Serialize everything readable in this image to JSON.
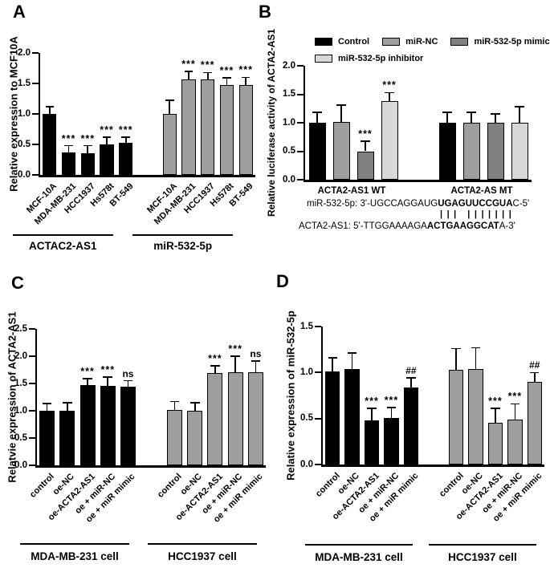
{
  "figure": {
    "background": "#ffffff"
  },
  "colors": {
    "black": "#000000",
    "gray": "#9e9e9e",
    "dark_gray": "#818181",
    "light_gray": "#d8d8d8"
  },
  "chart_data": [
    {
      "id": "A",
      "type": "bar",
      "panel_letter": "A",
      "ylabel": "Relative expression to MCF10A",
      "ylim": [
        0,
        2.0
      ],
      "yticks": [
        0.0,
        0.5,
        1.0,
        1.5,
        2.0
      ],
      "grid": false,
      "categories": [
        "MCF-10A",
        "MDA-MB-231",
        "HCC1937",
        "Hs578t",
        "BT-549"
      ],
      "groups": [
        {
          "label": "ACTAC2-AS1",
          "color": "#000000",
          "values": [
            1.0,
            0.37,
            0.36,
            0.5,
            0.53
          ],
          "errors": [
            0.12,
            0.11,
            0.12,
            0.12,
            0.09
          ],
          "sig": [
            "",
            "***",
            "***",
            "***",
            "***"
          ]
        },
        {
          "label": "miR-532-5p",
          "color": "#9e9e9e",
          "values": [
            1.0,
            1.57,
            1.57,
            1.47,
            1.47
          ],
          "errors": [
            0.22,
            0.13,
            0.11,
            0.12,
            0.13
          ],
          "sig": [
            "",
            "***",
            "***",
            "***",
            "***"
          ]
        }
      ]
    },
    {
      "id": "B",
      "type": "bar",
      "panel_letter": "B",
      "ylabel": "Relative luciferase activity of ACTA2-AS1",
      "ylim": [
        0,
        2.0
      ],
      "yticks": [
        0.0,
        0.5,
        1.0,
        1.5,
        2.0
      ],
      "grid": false,
      "legend": [
        {
          "label": "Control",
          "color": "#000000"
        },
        {
          "label": "miR-NC",
          "color": "#9e9e9e"
        },
        {
          "label": "miR-532-5p mimic",
          "color": "#818181"
        },
        {
          "label": "miR-532-5p inhibitor",
          "color": "#d8d8d8"
        }
      ],
      "groups": [
        {
          "label": "ACTA2-AS1 WT",
          "values": [
            1.0,
            1.01,
            0.5,
            1.38
          ],
          "errors": [
            0.18,
            0.3,
            0.18,
            0.15
          ],
          "sig": [
            "",
            "",
            "***",
            "***"
          ]
        },
        {
          "label": "ACTA2-AS MT",
          "values": [
            1.0,
            1.0,
            1.0,
            1.0
          ],
          "errors": [
            0.18,
            0.18,
            0.16,
            0.28
          ],
          "sig": [
            "",
            "",
            "",
            ""
          ]
        }
      ],
      "annotation": {
        "line1": [
          {
            "t": "miR-532-5p: 3'-UGCCAGGAUG"
          },
          {
            "t": "UGAGUUCCGUA",
            "b": true
          },
          {
            "t": "C-5'"
          }
        ],
        "line2": "||| |||||||",
        "line3": [
          {
            "t": "ACTA2-AS1:  5'-TTGGAAAAGA"
          },
          {
            "t": "ACTGAAGGCAT",
            "b": true
          },
          {
            "t": "A-3'"
          }
        ]
      }
    },
    {
      "id": "C",
      "type": "bar",
      "panel_letter": "C",
      "ylabel": "Relatvie expression of ACTA2-AS1",
      "ylim": [
        0,
        2.5
      ],
      "yticks": [
        0.0,
        0.5,
        1.0,
        1.5,
        2.0,
        2.5
      ],
      "grid": false,
      "categories": [
        "control",
        "oe-NC",
        "oe-ACTA2-AS1",
        "oe + miR-NC",
        "oe + miR mimic"
      ],
      "groups": [
        {
          "label": "MDA-MB-231 cell",
          "color": "#000000",
          "values": [
            1.0,
            1.0,
            1.47,
            1.46,
            1.44
          ],
          "errors": [
            0.13,
            0.15,
            0.12,
            0.16,
            0.11
          ],
          "sig": [
            "",
            "",
            "***",
            "***",
            "ns"
          ]
        },
        {
          "label": "HCC1937 cell",
          "color": "#9e9e9e",
          "values": [
            1.02,
            1.0,
            1.69,
            1.7,
            1.71
          ],
          "errors": [
            0.15,
            0.15,
            0.13,
            0.3,
            0.2
          ],
          "sig": [
            "",
            "",
            "***",
            "***",
            "ns"
          ]
        }
      ]
    },
    {
      "id": "D",
      "type": "bar",
      "panel_letter": "D",
      "ylabel": "Relative expression of miR-532-5p",
      "ylim": [
        0,
        1.5
      ],
      "yticks": [
        0.0,
        0.5,
        1.0,
        1.5
      ],
      "grid": false,
      "categories": [
        "control",
        "oe-NC",
        "oe-ACTA2-AS1",
        "oe + miR-NC",
        "oe + miR mimic"
      ],
      "groups": [
        {
          "label": "MDA-MB-231 cell",
          "color": "#000000",
          "values": [
            1.01,
            1.04,
            0.48,
            0.51,
            0.84
          ],
          "errors": [
            0.15,
            0.17,
            0.13,
            0.11,
            0.1
          ],
          "sig": [
            "",
            "",
            "***",
            "***",
            "##"
          ]
        },
        {
          "label": "HCC1937 cell",
          "color": "#9e9e9e",
          "values": [
            1.03,
            1.04,
            0.45,
            0.49,
            0.9
          ],
          "errors": [
            0.23,
            0.23,
            0.16,
            0.17,
            0.1
          ],
          "sig": [
            "",
            "",
            "***",
            "***",
            "##"
          ]
        }
      ]
    }
  ]
}
